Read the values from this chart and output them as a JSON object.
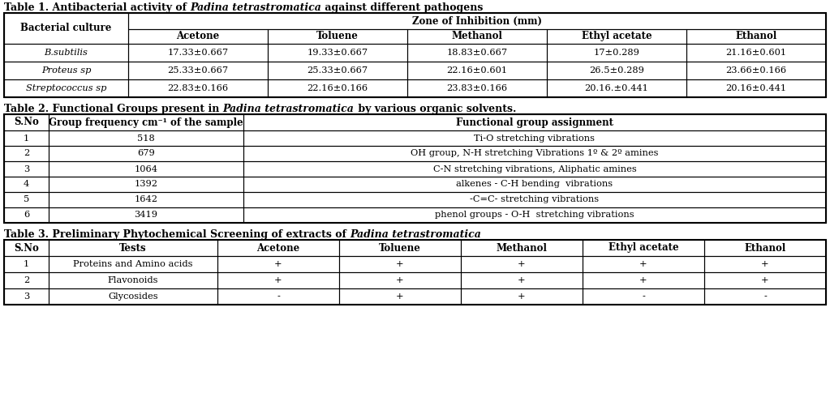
{
  "background_color": "#ffffff",
  "table1": {
    "title_parts": [
      {
        "text": "Table 1. Antibacterial activity of ",
        "bold": true,
        "italic": false
      },
      {
        "text": "Padina tetrastromatica",
        "bold": true,
        "italic": true
      },
      {
        "text": " against different pathogens",
        "bold": true,
        "italic": false
      }
    ],
    "merged_header": "Zone of Inhibition (mm)",
    "col1_header": "Bacterial culture",
    "subheaders": [
      "Acetone",
      "Toluene",
      "Methanol",
      "Ethyl acetate",
      "Ethanol"
    ],
    "rows": [
      [
        "B.subtilis",
        "17.33±0.667",
        "19.33±0.667",
        "18.83±0.667",
        "17±0.289",
        "21.16±0.601"
      ],
      [
        "Proteus sp",
        "25.33±0.667",
        "25.33±0.667",
        "22.16±0.601",
        "26.5±0.289",
        "23.66±0.166"
      ],
      [
        "Streptococcus sp",
        "22.83±0.166",
        "22.16±0.166",
        "23.83±0.166",
        "20.16.±0.441",
        "20.16±0.441"
      ]
    ]
  },
  "table2": {
    "title_parts": [
      {
        "text": "Table 2. Functional Groups present in ",
        "bold": true,
        "italic": false
      },
      {
        "text": "Padina tetrastromatica",
        "bold": true,
        "italic": true
      },
      {
        "text": " by various organic solvents.",
        "bold": true,
        "italic": false
      }
    ],
    "headers": [
      "S.No",
      "Group frequency cm⁻¹ of the sample",
      "Functional group assignment"
    ],
    "rows": [
      [
        "1",
        "518",
        "Ti-O stretching vibrations"
      ],
      [
        "2",
        "679",
        "OH group, N-H stretching Vibrations 1º & 2º amines"
      ],
      [
        "3",
        "1064",
        "C-N stretching vibrations, Aliphatic amines"
      ],
      [
        "4",
        "1392",
        "alkenes - C-H bending  vibrations"
      ],
      [
        "5",
        "1642",
        "-C=C- stretching vibrations"
      ],
      [
        "6",
        "3419",
        "phenol groups - O-H  stretching vibrations"
      ]
    ]
  },
  "table3": {
    "title_parts": [
      {
        "text": "Table 3. Preliminary Phytochemical Screening of extracts of ",
        "bold": true,
        "italic": false
      },
      {
        "text": "Padina tetrastromatica",
        "bold": true,
        "italic": true
      }
    ],
    "headers": [
      "S.No",
      "Tests",
      "Acetone",
      "Toluene",
      "Methanol",
      "Ethyl acetate",
      "Ethanol"
    ],
    "rows": [
      [
        "1",
        "Proteins and Amino acids",
        "+",
        "+",
        "+",
        "+",
        "+"
      ],
      [
        "2",
        "Flavonoids",
        "+",
        "+",
        "+",
        "+",
        "+"
      ],
      [
        "3",
        "Glycosides",
        "-",
        "+",
        "+",
        "-",
        "-"
      ]
    ]
  }
}
